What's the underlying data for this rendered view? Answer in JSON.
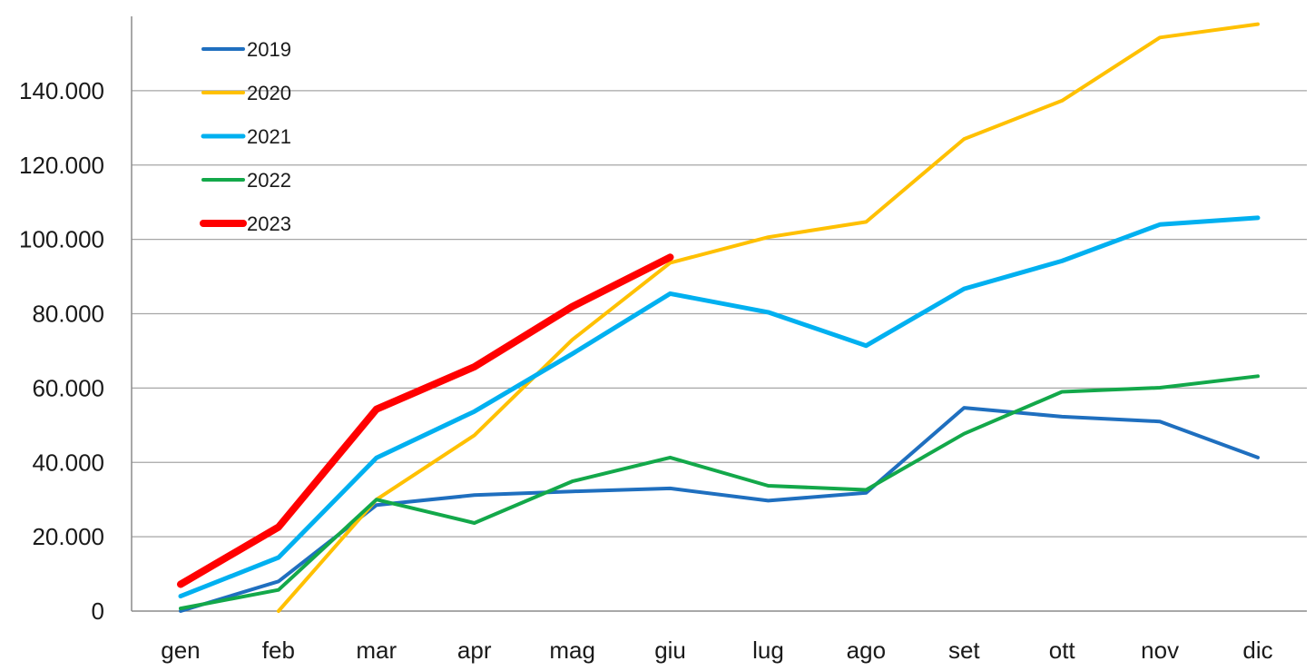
{
  "chart_data": {
    "type": "line",
    "title": "",
    "xlabel": "",
    "ylabel": "",
    "categories": [
      "gen",
      "feb",
      "mar",
      "apr",
      "mag",
      "giu",
      "lug",
      "ago",
      "set",
      "ott",
      "nov",
      "dic"
    ],
    "ylim": [
      0,
      160000
    ],
    "yticks": [
      0,
      20000,
      40000,
      60000,
      80000,
      100000,
      120000,
      140000
    ],
    "ytick_labels": [
      "0",
      "20.000",
      "40.000",
      "60.000",
      "80.000",
      "100.000",
      "120.000",
      "140.000"
    ],
    "grid": "horizontal",
    "legend_position": "top-left",
    "series": [
      {
        "name": "2019",
        "color": "#1F6FBF",
        "width": 4,
        "values": [
          -500,
          8000,
          28500,
          31200,
          32200,
          33000,
          29700,
          31800,
          54700,
          52300,
          51000,
          41300
        ]
      },
      {
        "name": "2020",
        "color": "#FFC000",
        "width": 4,
        "values": [
          null,
          -500,
          30000,
          47300,
          73000,
          93700,
          100600,
          104700,
          127000,
          137300,
          154300,
          157900
        ]
      },
      {
        "name": "2021",
        "color": "#00B0F0",
        "width": 5,
        "values": [
          4000,
          14400,
          41200,
          53700,
          69200,
          85400,
          80400,
          71400,
          86700,
          94200,
          104000,
          105800
        ]
      },
      {
        "name": "2022",
        "color": "#13A84A",
        "width": 4,
        "values": [
          700,
          5700,
          30000,
          23700,
          34900,
          41300,
          33700,
          32600,
          47700,
          59000,
          60100,
          63200
        ]
      },
      {
        "name": "2023",
        "color": "#FF0000",
        "width": 8,
        "values": [
          7200,
          22600,
          54300,
          65700,
          81900,
          95200,
          null,
          null,
          null,
          null,
          null,
          null
        ]
      }
    ]
  }
}
